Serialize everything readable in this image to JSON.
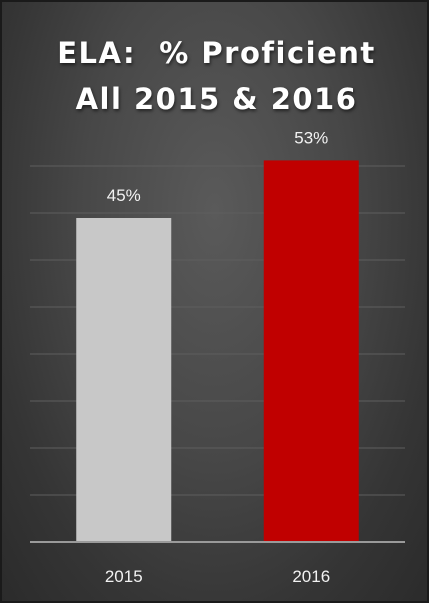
{
  "chart_data": {
    "type": "bar",
    "title_line1": "ELA:  % Proficient",
    "title_line2": "All 2015 & 2016",
    "categories": [
      "2015",
      "2016"
    ],
    "values": [
      45,
      53
    ],
    "data_labels": [
      "45%",
      "53%"
    ],
    "colors": [
      "#c8c8c8",
      "#c00000"
    ],
    "grid": true,
    "background": "#474747"
  }
}
